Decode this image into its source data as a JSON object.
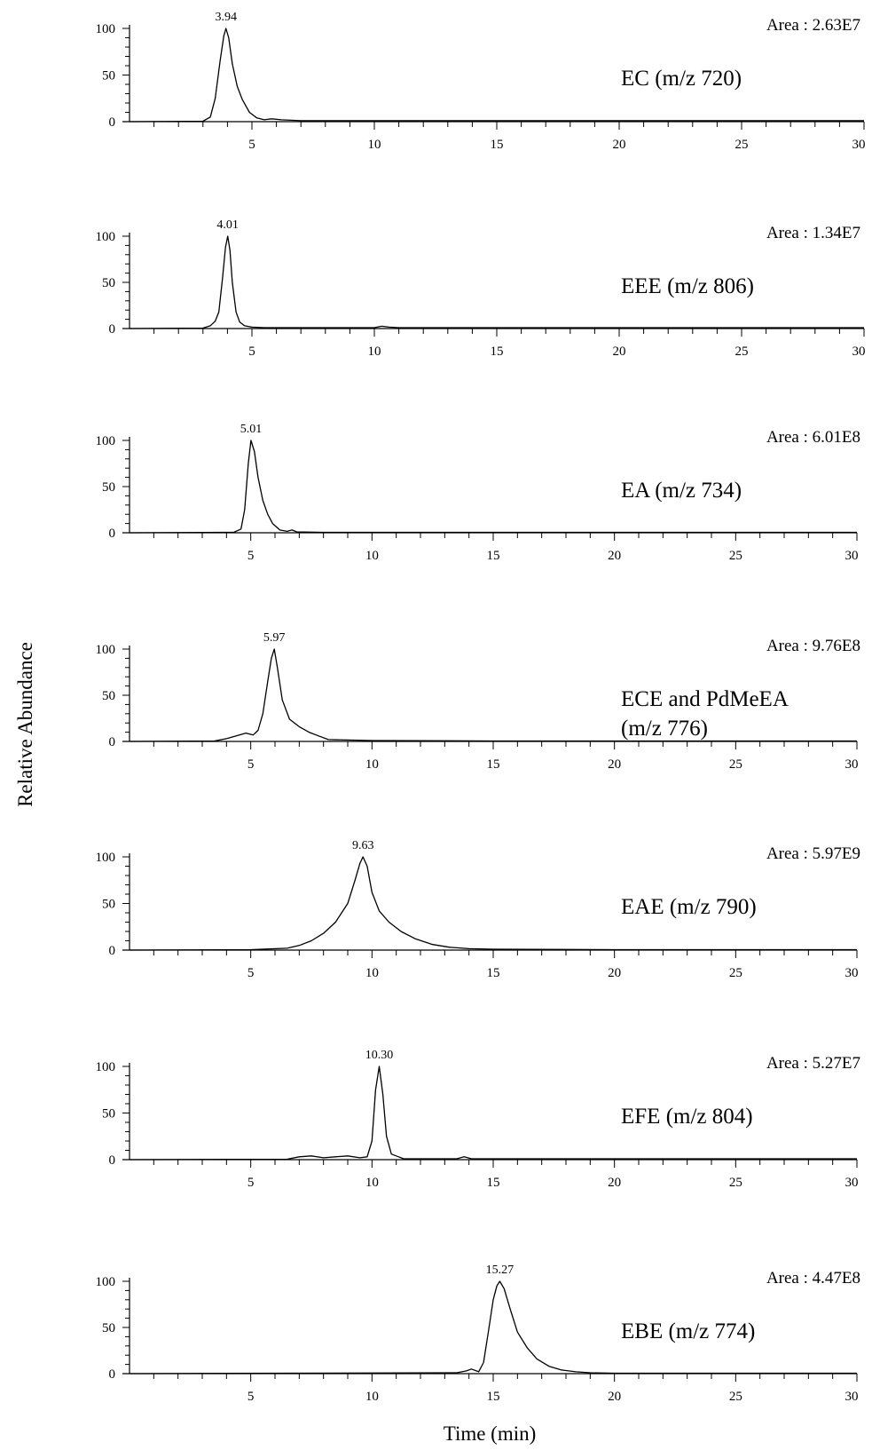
{
  "figure": {
    "ylabel": "Relative Abundance",
    "xlabel": "Time (min)"
  },
  "chart_data": [
    {
      "type": "line",
      "compound": [
        "EC (m/z 720)"
      ],
      "area": "Area : 2.63E7",
      "peak_label": "3.94",
      "peak_rt": 3.94,
      "xlim": [
        0,
        30
      ],
      "ylim": [
        0,
        100
      ],
      "x_ticks": [
        5,
        10,
        15,
        20,
        25,
        30
      ],
      "y_ticks": [
        0,
        50,
        100
      ],
      "series": [
        {
          "x": [
            0,
            3,
            3.3,
            3.5,
            3.7,
            3.85,
            3.94,
            4.05,
            4.2,
            4.4,
            4.6,
            4.9,
            5.2,
            5.5,
            5.8,
            6.2,
            7,
            10,
            15,
            20,
            25,
            30
          ],
          "y": [
            0,
            0.5,
            5,
            25,
            65,
            92,
            100,
            90,
            62,
            38,
            24,
            10,
            4,
            2,
            3,
            2,
            1,
            1,
            1,
            1,
            1,
            1
          ]
        }
      ]
    },
    {
      "type": "line",
      "compound": [
        "EEE (m/z 806)"
      ],
      "area": "Area : 1.34E7",
      "peak_label": "4.01",
      "peak_rt": 4.01,
      "xlim": [
        0,
        30
      ],
      "ylim": [
        0,
        100
      ],
      "x_ticks": [
        5,
        10,
        15,
        20,
        25,
        30
      ],
      "y_ticks": [
        0,
        50,
        100
      ],
      "series": [
        {
          "x": [
            0,
            3.0,
            3.3,
            3.5,
            3.65,
            3.8,
            3.92,
            4.01,
            4.1,
            4.2,
            4.35,
            4.5,
            4.7,
            5.0,
            5.5,
            8,
            10,
            10.3,
            10.6,
            11,
            15,
            20,
            25,
            30
          ],
          "y": [
            0,
            0.5,
            3,
            8,
            18,
            55,
            88,
            100,
            85,
            50,
            18,
            7,
            3,
            1.5,
            1,
            1,
            1,
            2.5,
            1.5,
            1,
            1,
            1,
            1,
            1
          ]
        }
      ]
    },
    {
      "type": "line",
      "compound": [
        "EA (m/z 734)"
      ],
      "area": "Area : 6.01E8",
      "peak_label": "5.01",
      "peak_rt": 5.01,
      "xlim": [
        0,
        30
      ],
      "ylim": [
        0,
        100
      ],
      "x_ticks": [
        5,
        10,
        15,
        20,
        25,
        30
      ],
      "y_ticks": [
        0,
        50,
        100
      ],
      "series": [
        {
          "x": [
            0,
            4.3,
            4.6,
            4.75,
            4.9,
            5.01,
            5.15,
            5.3,
            5.5,
            5.7,
            5.9,
            6.2,
            6.5,
            6.7,
            6.9,
            8,
            10,
            15,
            20,
            25,
            30
          ],
          "y": [
            0,
            0.5,
            4,
            25,
            75,
            100,
            88,
            60,
            35,
            20,
            10,
            3,
            1.5,
            3,
            1,
            0.5,
            0.5,
            0.5,
            0.5,
            0.5,
            0.5
          ]
        }
      ]
    },
    {
      "type": "line",
      "compound": [
        "ECE and PdMeEA",
        "(m/z 776)"
      ],
      "area": "Area : 9.76E8",
      "peak_label": "5.97",
      "peak_rt": 5.97,
      "xlim": [
        0,
        30
      ],
      "ylim": [
        0,
        100
      ],
      "x_ticks": [
        5,
        10,
        15,
        20,
        25,
        30
      ],
      "y_ticks": [
        0,
        50,
        100
      ],
      "series": [
        {
          "x": [
            0,
            3.5,
            4.0,
            4.4,
            4.8,
            5.1,
            5.3,
            5.5,
            5.7,
            5.85,
            5.97,
            6.1,
            6.3,
            6.6,
            7.0,
            7.4,
            7.8,
            8.2,
            10,
            15,
            20,
            25,
            30
          ],
          "y": [
            0,
            0.5,
            3,
            6,
            9,
            7,
            12,
            30,
            65,
            90,
            100,
            80,
            45,
            24,
            16,
            10,
            6,
            2,
            1,
            0.5,
            0.5,
            0.5,
            0.5
          ]
        }
      ]
    },
    {
      "type": "line",
      "compound": [
        "EAE (m/z 790)"
      ],
      "area": "Area : 5.97E9",
      "peak_label": "9.63",
      "peak_rt": 9.63,
      "xlim": [
        0,
        30
      ],
      "ylim": [
        0,
        100
      ],
      "x_ticks": [
        5,
        10,
        15,
        20,
        25,
        30
      ],
      "y_ticks": [
        0,
        50,
        100
      ],
      "series": [
        {
          "x": [
            0,
            5,
            6.5,
            7.0,
            7.5,
            8.0,
            8.5,
            9.0,
            9.3,
            9.5,
            9.63,
            9.8,
            10.0,
            10.3,
            10.7,
            11.2,
            11.8,
            12.5,
            13.2,
            14,
            15,
            20,
            25,
            30
          ],
          "y": [
            0,
            0.5,
            2,
            5,
            10,
            18,
            30,
            50,
            75,
            93,
            100,
            90,
            62,
            42,
            30,
            20,
            12,
            6,
            3,
            1.5,
            1,
            0.5,
            0.5,
            0.5
          ]
        }
      ]
    },
    {
      "type": "line",
      "compound": [
        "EFE (m/z 804)"
      ],
      "area": "Area : 5.27E7",
      "peak_label": "10.30",
      "peak_rt": 10.3,
      "xlim": [
        0,
        30
      ],
      "ylim": [
        0,
        100
      ],
      "x_ticks": [
        5,
        10,
        15,
        20,
        25,
        30
      ],
      "y_ticks": [
        0,
        50,
        100
      ],
      "series": [
        {
          "x": [
            0,
            6.5,
            7.0,
            7.5,
            8.0,
            8.5,
            9.0,
            9.5,
            9.8,
            10.0,
            10.15,
            10.3,
            10.45,
            10.6,
            10.8,
            11.0,
            11.3,
            13.5,
            13.8,
            14.1,
            15,
            20,
            25,
            30
          ],
          "y": [
            0,
            0.5,
            3,
            4,
            2,
            3,
            4,
            2,
            3,
            20,
            75,
            100,
            70,
            25,
            6,
            4,
            1,
            1,
            3,
            1,
            1,
            1,
            1,
            1
          ]
        }
      ]
    },
    {
      "type": "line",
      "compound": [
        "EBE (m/z 774)"
      ],
      "area": "Area : 4.47E8",
      "peak_label": "15.27",
      "peak_rt": 15.27,
      "xlim": [
        0,
        30
      ],
      "ylim": [
        0,
        100
      ],
      "x_ticks": [
        5,
        10,
        15,
        20,
        25,
        30
      ],
      "y_ticks": [
        0,
        50,
        100
      ],
      "series": [
        {
          "x": [
            0,
            13.5,
            13.9,
            14.1,
            14.4,
            14.6,
            14.8,
            15.0,
            15.15,
            15.27,
            15.45,
            15.7,
            16.0,
            16.4,
            16.8,
            17.3,
            17.8,
            18.4,
            19,
            20,
            25,
            30
          ],
          "y": [
            0,
            1,
            3,
            5,
            2,
            12,
            45,
            80,
            95,
            100,
            92,
            70,
            45,
            28,
            16,
            8,
            4,
            2,
            1,
            0.5,
            0.5,
            0.5
          ]
        }
      ]
    }
  ]
}
